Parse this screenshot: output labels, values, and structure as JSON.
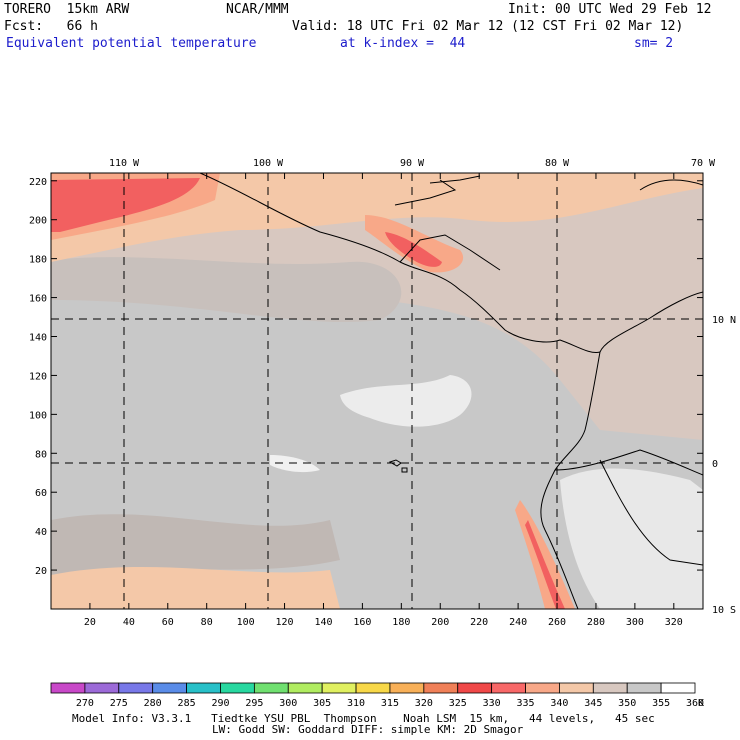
{
  "header": {
    "model": "TORERO  15km ARW",
    "center": "NCAR/MMM",
    "init": "Init: 00 UTC Wed 29 Feb 12",
    "fcst": "Fcst:   66 h",
    "valid": "Valid: 18 UTC Fri 02 Mar 12 (12 CST Fri 02 Mar 12)",
    "field": "Equivalent potential temperature",
    "level": "at k-index =  44",
    "smoothing": "sm= 2"
  },
  "axes": {
    "x_ticks": [
      "20",
      "40",
      "60",
      "80",
      "100",
      "120",
      "140",
      "160",
      "180",
      "200",
      "220",
      "240",
      "260",
      "280",
      "300",
      "320"
    ],
    "y_ticks": [
      "20",
      "40",
      "60",
      "80",
      "100",
      "120",
      "140",
      "160",
      "180",
      "200",
      "220"
    ],
    "lon_labels": [
      "110 W",
      "100 W",
      "90 W",
      "80 W",
      "70 W"
    ],
    "lat_labels": [
      "10 N",
      "0",
      "10 S"
    ]
  },
  "legend": {
    "values": [
      "270",
      "275",
      "280",
      "285",
      "290",
      "295",
      "300",
      "305",
      "310",
      "315",
      "320",
      "325",
      "330",
      "335",
      "340",
      "345",
      "350",
      "355",
      "360"
    ],
    "unit": "K",
    "colors": [
      "#c848c8",
      "#9c6ad8",
      "#7878e8",
      "#5a8ce8",
      "#28c0c8",
      "#28d8a0",
      "#70e070",
      "#b0ec60",
      "#e0f060",
      "#f8d848",
      "#f8b058",
      "#f08058",
      "#f04848",
      "#f86868",
      "#f8a888",
      "#f4c8a8",
      "#d8c8c0",
      "#c8c8c8",
      "#ffffff"
    ]
  },
  "footer": {
    "line1": "Model Info: V3.3.1   Tiedtke YSU PBL  Thompson    Noah LSM  15 km,   44 levels,   45 sec",
    "line2": "LW: Godd SW: Goddard DIFF: simple KM: 2D Smagor"
  }
}
